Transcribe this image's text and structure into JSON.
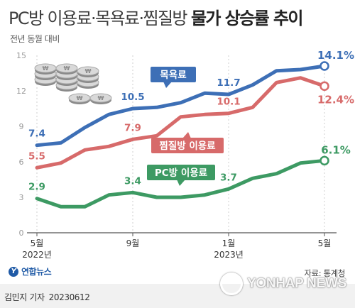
{
  "title": {
    "light": "PC방 이용료·목욕료·찜질방",
    "bold": "물가 상승률 추이"
  },
  "subtitle": "전년 동월 대비",
  "source": "자료: 통계청",
  "logo": "연합뉴스",
  "byline": {
    "author": "김민지 기자",
    "date": "20230612"
  },
  "watermark": "YONHAP NEWS",
  "chart_data": {
    "type": "line",
    "x": [
      "2022-05",
      "2022-06",
      "2022-07",
      "2022-08",
      "2022-09",
      "2022-10",
      "2022-11",
      "2022-12",
      "2023-01",
      "2023-02",
      "2023-03",
      "2023-04",
      "2023-05"
    ],
    "x_ticks": [
      {
        "at": 0,
        "label": "5월",
        "sub": "2022년"
      },
      {
        "at": 4,
        "label": "9월",
        "sub": ""
      },
      {
        "at": 8,
        "label": "1월",
        "sub": "2023년"
      },
      {
        "at": 12,
        "label": "5월",
        "sub": ""
      }
    ],
    "ylim": [
      0,
      15
    ],
    "y_ticks": [
      0,
      3,
      6,
      9,
      12,
      15
    ],
    "grid": "vertical dotted",
    "series": [
      {
        "name": "목욕료",
        "color": "#3d6fb6",
        "values": [
          7.4,
          7.6,
          8.9,
          10.0,
          10.5,
          10.6,
          11.0,
          11.8,
          11.7,
          12.5,
          13.7,
          13.8,
          14.1
        ],
        "labels": [
          {
            "i": 0,
            "text": "7.4"
          },
          {
            "i": 4,
            "text": "10.5"
          },
          {
            "i": 8,
            "text": "11.7"
          },
          {
            "i": 12,
            "text": "14.1%"
          }
        ]
      },
      {
        "name": "찜질방 이용료",
        "color": "#d76a6a",
        "values": [
          5.5,
          5.9,
          7.0,
          7.3,
          7.9,
          8.2,
          9.8,
          10.0,
          10.1,
          10.6,
          12.7,
          13.1,
          12.4
        ],
        "labels": [
          {
            "i": 0,
            "text": "5.5"
          },
          {
            "i": 4,
            "text": "7.9"
          },
          {
            "i": 8,
            "text": "10.1"
          },
          {
            "i": 12,
            "text": "12.4%"
          }
        ]
      },
      {
        "name": "PC방 이용료",
        "color": "#3d9a63",
        "values": [
          2.9,
          2.2,
          2.2,
          3.2,
          3.4,
          3.0,
          3.0,
          3.2,
          3.7,
          4.6,
          5.0,
          5.9,
          6.1
        ],
        "labels": [
          {
            "i": 0,
            "text": "2.9"
          },
          {
            "i": 4,
            "text": "3.4"
          },
          {
            "i": 8,
            "text": "3.7"
          },
          {
            "i": 12,
            "text": "6.1%"
          }
        ]
      }
    ]
  }
}
